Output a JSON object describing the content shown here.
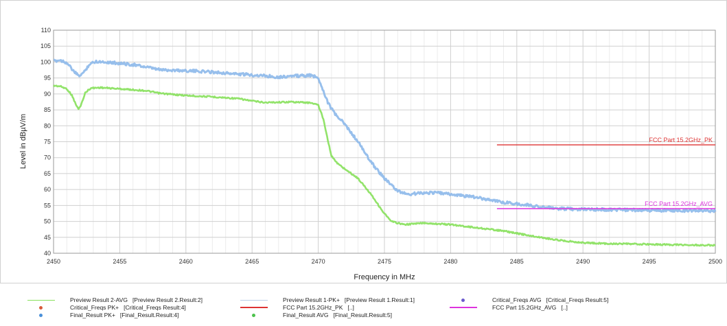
{
  "chart_data": {
    "type": "line",
    "xlabel": "Frequency in MHz",
    "ylabel": "Level in dBµV/m",
    "xlim": [
      2450,
      2500
    ],
    "ylim": [
      40,
      110
    ],
    "grid": true,
    "x_ticks": [
      "2450",
      "2455",
      "2460",
      "2465",
      "2470",
      "2475",
      "2480",
      "2485",
      "2490",
      "2495",
      "2500"
    ],
    "y_ticks": [
      "40",
      "45",
      "50",
      "55",
      "60",
      "65",
      "70",
      "75",
      "80",
      "85",
      "90",
      "95",
      "100",
      "105",
      "110"
    ],
    "series": [
      {
        "name": "Preview Result 2-AVG",
        "color": "#86e05a",
        "points": [
          [
            2450,
            92.6
          ],
          [
            2450.5,
            92.4
          ],
          [
            2451,
            91.6
          ],
          [
            2451.4,
            89.5
          ],
          [
            2451.7,
            86.5
          ],
          [
            2451.9,
            85.2
          ],
          [
            2452.1,
            86.8
          ],
          [
            2452.4,
            90.4
          ],
          [
            2452.8,
            91.8
          ],
          [
            2453.5,
            92.0
          ],
          [
            2455,
            91.6
          ],
          [
            2457,
            91.0
          ],
          [
            2458,
            90.2
          ],
          [
            2460,
            89.5
          ],
          [
            2462,
            89.1
          ],
          [
            2464,
            88.5
          ],
          [
            2465,
            87.8
          ],
          [
            2466,
            87.3
          ],
          [
            2468,
            87.5
          ],
          [
            2469.5,
            87.2
          ],
          [
            2470,
            86.5
          ],
          [
            2470.4,
            82
          ],
          [
            2470.7,
            76
          ],
          [
            2471,
            70.5
          ],
          [
            2471.5,
            68
          ],
          [
            2472,
            66.5
          ],
          [
            2473,
            63.5
          ],
          [
            2474,
            58.5
          ],
          [
            2474.8,
            53.5
          ],
          [
            2475.5,
            50
          ],
          [
            2476.5,
            49
          ],
          [
            2478,
            49.5
          ],
          [
            2480,
            49
          ],
          [
            2482,
            48
          ],
          [
            2484,
            47
          ],
          [
            2486,
            45.5
          ],
          [
            2488,
            44.2
          ],
          [
            2490,
            43.3
          ],
          [
            2492,
            43
          ],
          [
            2495,
            42.8
          ],
          [
            2498,
            42.6
          ],
          [
            2500,
            42.5
          ]
        ]
      },
      {
        "name": "Preview Result 1-PK+",
        "color": "#8cb8ea",
        "points": [
          [
            2450,
            100.3
          ],
          [
            2450.5,
            100.6
          ],
          [
            2451,
            99.8
          ],
          [
            2451.5,
            97.2
          ],
          [
            2451.9,
            95.6
          ],
          [
            2452.3,
            96.8
          ],
          [
            2452.7,
            99.3
          ],
          [
            2453.2,
            100.2
          ],
          [
            2454,
            100.0
          ],
          [
            2455,
            99.6
          ],
          [
            2456,
            99.2
          ],
          [
            2457,
            98.4
          ],
          [
            2458,
            97.6
          ],
          [
            2460,
            97.3
          ],
          [
            2462,
            96.9
          ],
          [
            2464,
            96.2
          ],
          [
            2466,
            95.7
          ],
          [
            2467,
            95.3
          ],
          [
            2468,
            95.6
          ],
          [
            2469.5,
            95.8
          ],
          [
            2470,
            95.0
          ],
          [
            2470.3,
            92
          ],
          [
            2470.7,
            87.5
          ],
          [
            2471.2,
            84
          ],
          [
            2472,
            80.5
          ],
          [
            2473,
            75
          ],
          [
            2474,
            68.5
          ],
          [
            2475,
            63.5
          ],
          [
            2476,
            59.5
          ],
          [
            2476.8,
            58.5
          ],
          [
            2478,
            59
          ],
          [
            2479,
            59
          ],
          [
            2480,
            58.5
          ],
          [
            2482,
            57.5
          ],
          [
            2484,
            56
          ],
          [
            2486,
            55
          ],
          [
            2488,
            54
          ],
          [
            2490,
            53.8
          ],
          [
            2492,
            53.7
          ],
          [
            2495,
            53.5
          ],
          [
            2498,
            53.4
          ],
          [
            2500,
            53.3
          ]
        ]
      },
      {
        "name": "FCC Part 15.2GHz_PK",
        "color": "#dd3333",
        "points": [
          [
            2483.5,
            74
          ],
          [
            2500,
            74
          ]
        ],
        "label": "FCC Part 15.2GHz_PK"
      },
      {
        "name": "FCC Part 15.2GHz_AVG",
        "color": "#dd33dd",
        "points": [
          [
            2483.5,
            54
          ],
          [
            2500,
            54
          ]
        ],
        "label": "FCC Part 15.2GHz_AVG"
      }
    ],
    "legend": {
      "placement": "bottom",
      "items": [
        {
          "name": "Preview Result 2-AVG",
          "detail": "[Preview Result 2.Result:2]",
          "style": "line",
          "color": "#86e05a"
        },
        {
          "name": "Preview Result 1-PK+",
          "detail": "[Preview Result 1.Result:1]",
          "style": "line",
          "color": "#b8cde8"
        },
        {
          "name": "Critical_Freqs AVG",
          "detail": "[Critical_Freqs Result:5]",
          "style": "dot",
          "color": "#6a5acd"
        },
        {
          "name": "Critical_Freqs PK+",
          "detail": "[Critical_Freqs Result:4]",
          "style": "dot",
          "color": "#d95a3a"
        },
        {
          "name": "FCC Part 15.2GHz_PK",
          "detail": "[..]",
          "style": "thick",
          "color": "#dd3333"
        },
        {
          "name": "FCC Part 15.2GHz_AVG",
          "detail": "[..]",
          "style": "thick",
          "color": "#dd33dd"
        },
        {
          "name": "Final_Result PK+",
          "detail": "[Final_Result.Result:4]",
          "style": "dot",
          "color": "#4a90d9"
        },
        {
          "name": "Final_Result AVG",
          "detail": "[Final_Result.Result:5]",
          "style": "dot",
          "color": "#4cc24c"
        }
      ]
    }
  }
}
